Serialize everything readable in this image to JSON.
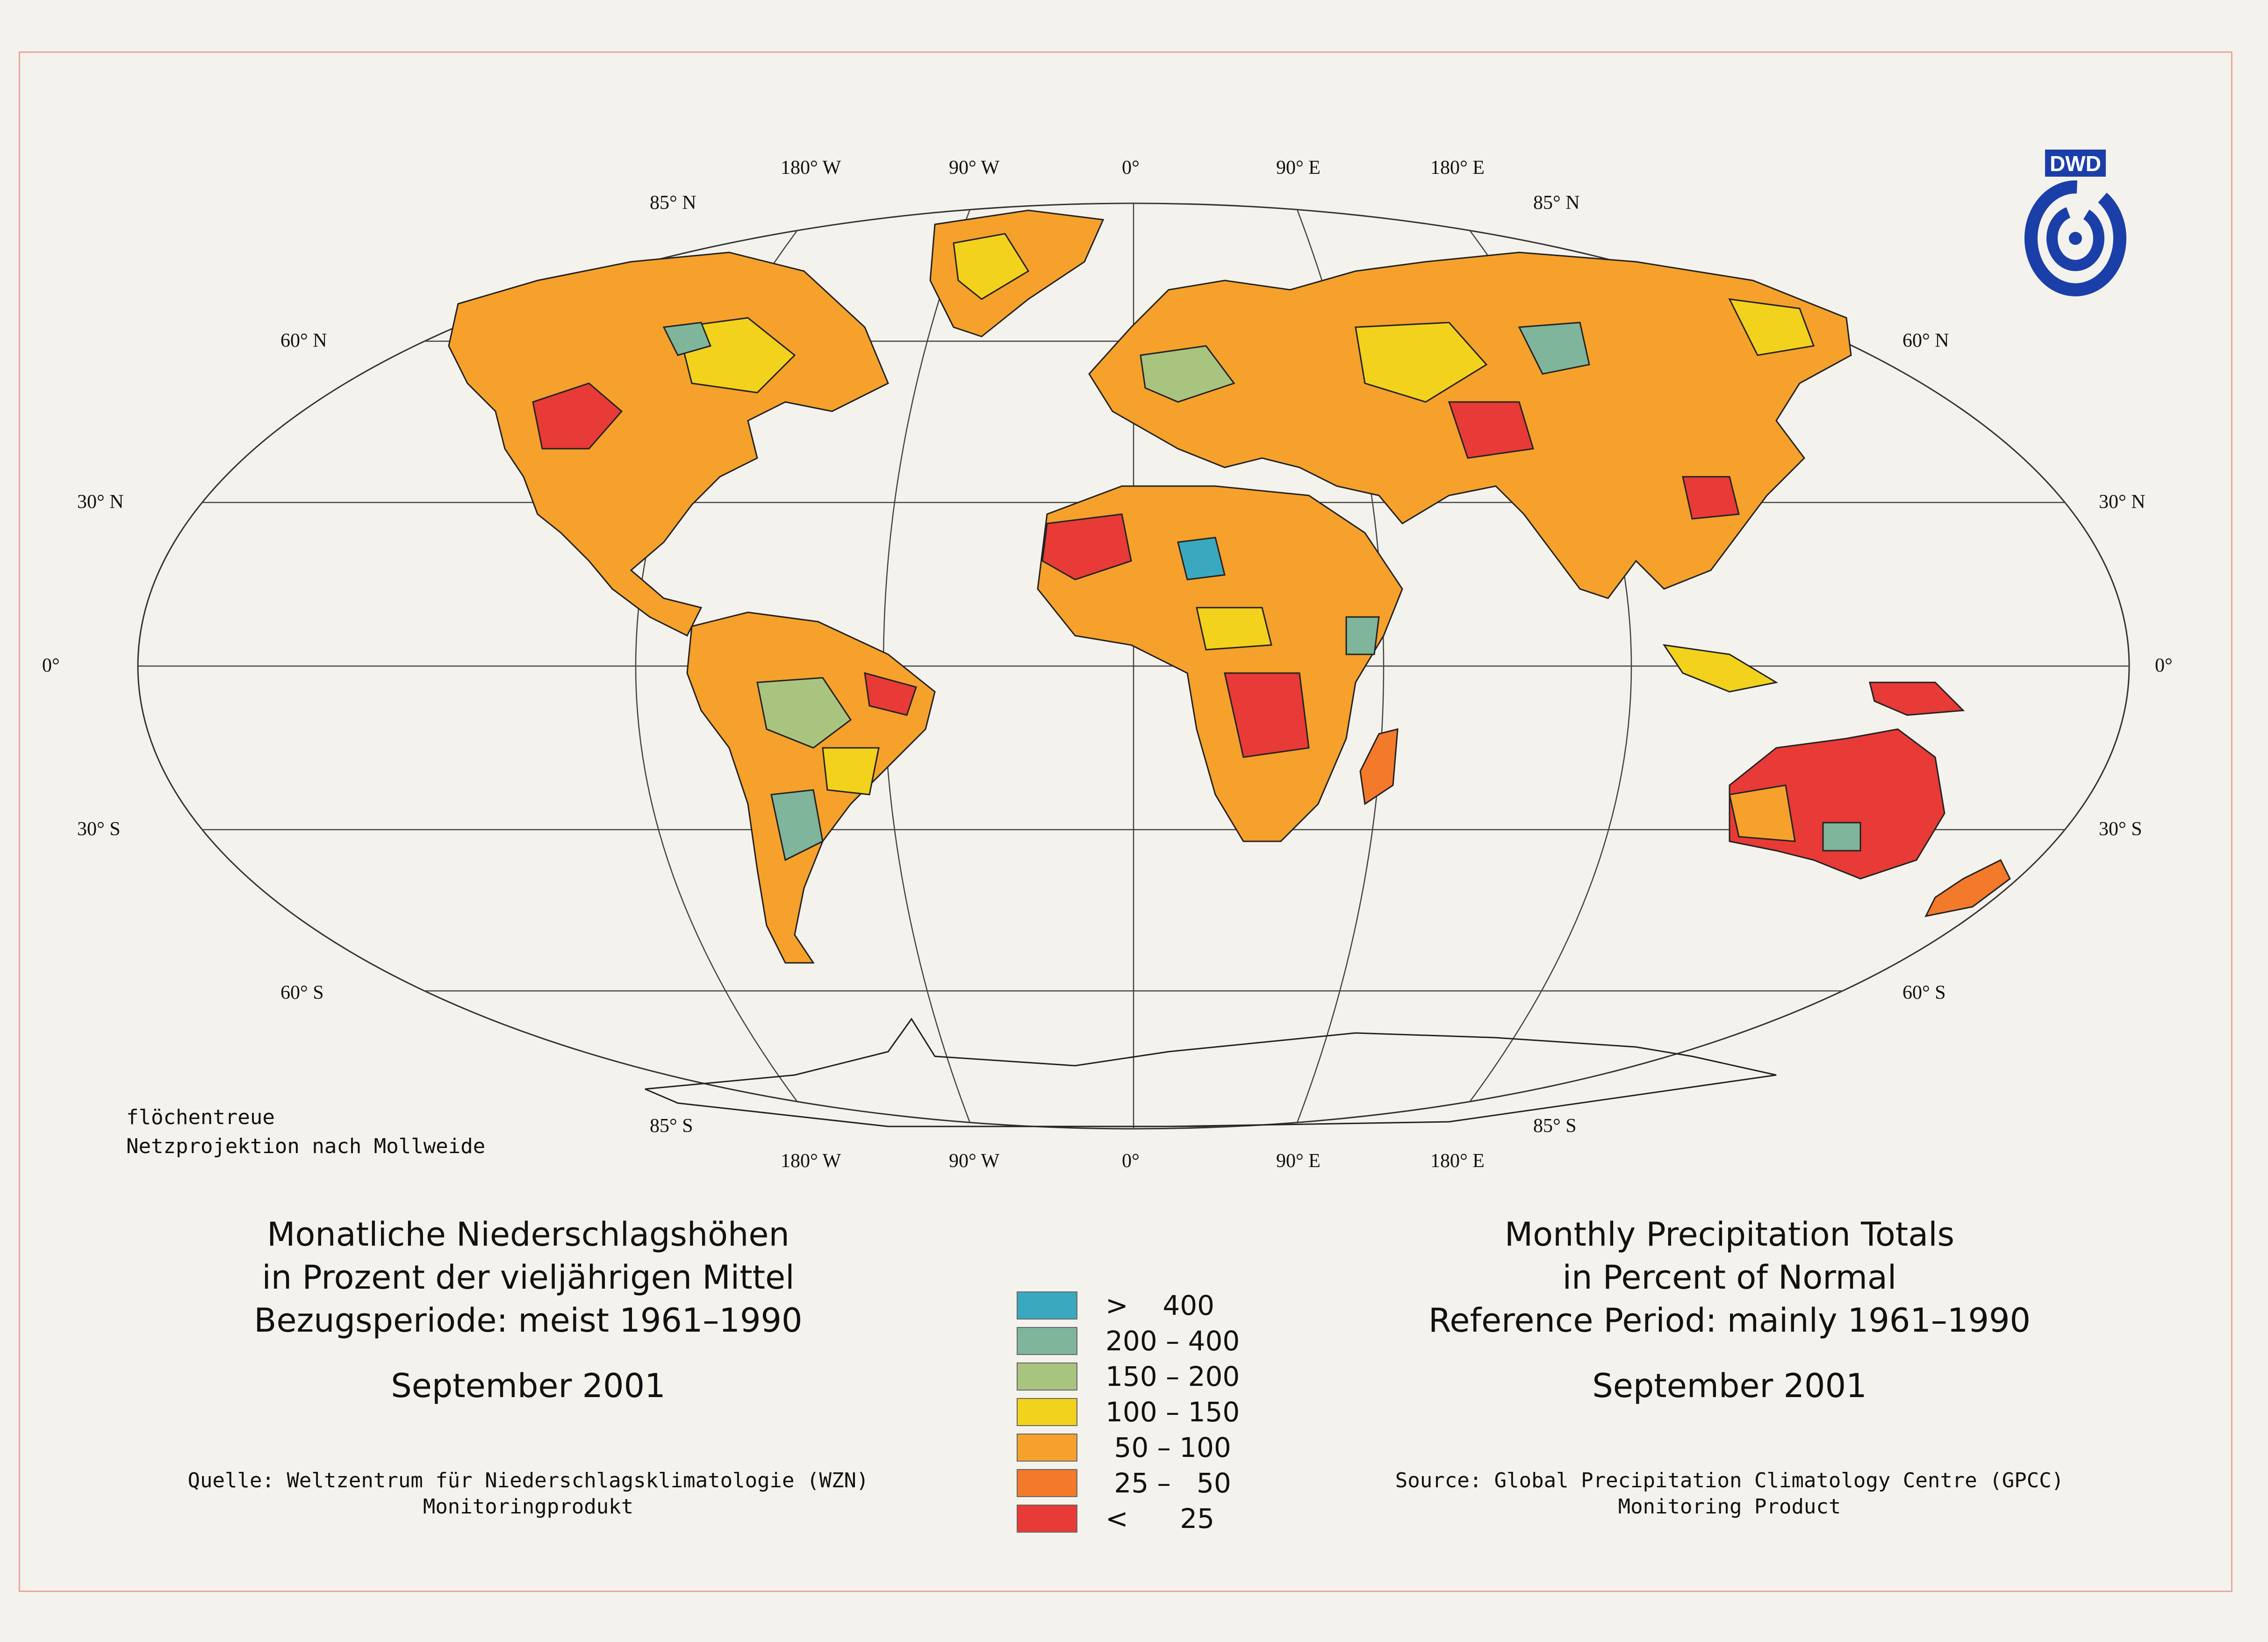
{
  "lat_labels": {
    "n85": "85° N",
    "n60": "60° N",
    "n30": "30° N",
    "eq": "0°",
    "s30": "30° S",
    "s60": "60° S",
    "s85": "85° S"
  },
  "lon_labels": {
    "w180": "180° W",
    "w90": "90° W",
    "zero": "0°",
    "e90": "90° E",
    "e180": "180° E"
  },
  "projection_note": {
    "line1": "flöchentreue",
    "line2": "Netzprojektion nach Mollweide"
  },
  "title_de": {
    "line1": "Monatliche Niederschlagshöhen",
    "line2": "in Prozent der vieljährigen Mittel",
    "line3": "Bezugsperiode: meist 1961–1990",
    "date": "September 2001"
  },
  "title_en": {
    "line1": "Monthly Precipitation Totals",
    "line2": "in Percent of Normal",
    "line3": "Reference Period: mainly 1961–1990",
    "date": "September 2001"
  },
  "source_de": {
    "line1": "Quelle: Weltzentrum für Niederschlagsklimatologie (WZN)",
    "line2": "Monitoringprodukt"
  },
  "source_en": {
    "line1": "Source: Global Precipitation Climatology Centre (GPCC)",
    "line2": "Monitoring Product"
  },
  "legend": [
    {
      "label": ">    400",
      "color": "#3aa9bf"
    },
    {
      "label": "200 – 400",
      "color": "#7fb59a"
    },
    {
      "label": "150 – 200",
      "color": "#a9c47f"
    },
    {
      "label": "100 – 150",
      "color": "#f2d21c"
    },
    {
      "label": " 50 – 100",
      "color": "#f5a12c"
    },
    {
      "label": " 25 –   50",
      "color": "#f27a2a"
    },
    {
      "label": "<      25",
      "color": "#e83a36"
    }
  ],
  "logo": {
    "text": "DWD",
    "color": "#1b3fa8"
  }
}
